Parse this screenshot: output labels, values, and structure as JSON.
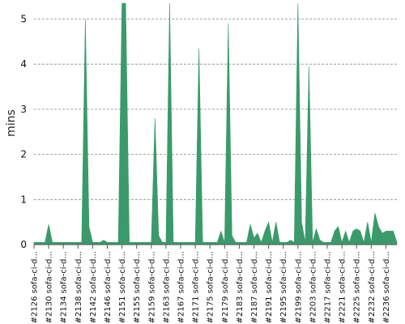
{
  "chart_data": {
    "type": "area",
    "ylabel": "mins",
    "ylim": [
      0,
      5.35
    ],
    "yticks": [
      0,
      1,
      2,
      3,
      4,
      5
    ],
    "grid": "horizontal-dashed",
    "color": "#3a9a6a",
    "xtick_labels": [
      "#2126 sofa-ci-d...",
      "#2130 sofa-ci-d...",
      "#2134 sofa-ci-d...",
      "#2138 sofa-ci-d...",
      "#2142 sofa-ci-d...",
      "#2146 sofa-ci-d...",
      "#2151 sofa-ci-d...",
      "#2155 sofa-ci-d...",
      "#2159 sofa-ci-d...",
      "#2163 sofa-ci-d...",
      "#2167 sofa-ci-d...",
      "#2171 sofa-ci-d...",
      "#2175 sofa-ci-d...",
      "#2179 sofa-ci-d...",
      "#2183 sofa-ci-d...",
      "#2187 sofa-ci-d...",
      "#2191 sofa-ci-d...",
      "#2195 sofa-ci-d...",
      "#2199 sofa-ci-d...",
      "#2203 sofa-ci-d...",
      "#2217 sofa-ci-d...",
      "#2221 sofa-ci-d...",
      "#2225 sofa-ci-d...",
      "#2232 sofa-ci-d...",
      "#2236 sofa-ci-d..."
    ],
    "points_per_tick": 4,
    "values": [
      0.05,
      0.05,
      0.05,
      0.05,
      0.45,
      0.05,
      0.05,
      0.05,
      0.05,
      0.05,
      0.05,
      0.05,
      0.05,
      0.05,
      5.0,
      0.4,
      0.05,
      0.05,
      0.05,
      0.1,
      0.05,
      0.05,
      0.05,
      0.05,
      5.35,
      5.35,
      0.05,
      0.05,
      0.05,
      0.05,
      0.05,
      0.05,
      0.05,
      2.8,
      0.2,
      0.05,
      0.05,
      5.35,
      0.05,
      0.05,
      0.05,
      0.05,
      0.05,
      0.05,
      0.05,
      4.35,
      0.05,
      0.05,
      0.05,
      0.05,
      0.05,
      0.3,
      0.05,
      4.9,
      0.2,
      0.05,
      0.05,
      0.05,
      0.05,
      0.45,
      0.15,
      0.25,
      0.05,
      0.3,
      0.5,
      0.05,
      0.5,
      0.05,
      0.05,
      0.05,
      0.1,
      0.05,
      5.35,
      0.5,
      0.05,
      3.95,
      0.05,
      0.35,
      0.1,
      0.05,
      0.05,
      0.05,
      0.3,
      0.4,
      0.05,
      0.3,
      0.05,
      0.3,
      0.35,
      0.3,
      0.05,
      0.5,
      0.05,
      0.7,
      0.4,
      0.25,
      0.3,
      0.3,
      0.3,
      0.05
    ]
  }
}
